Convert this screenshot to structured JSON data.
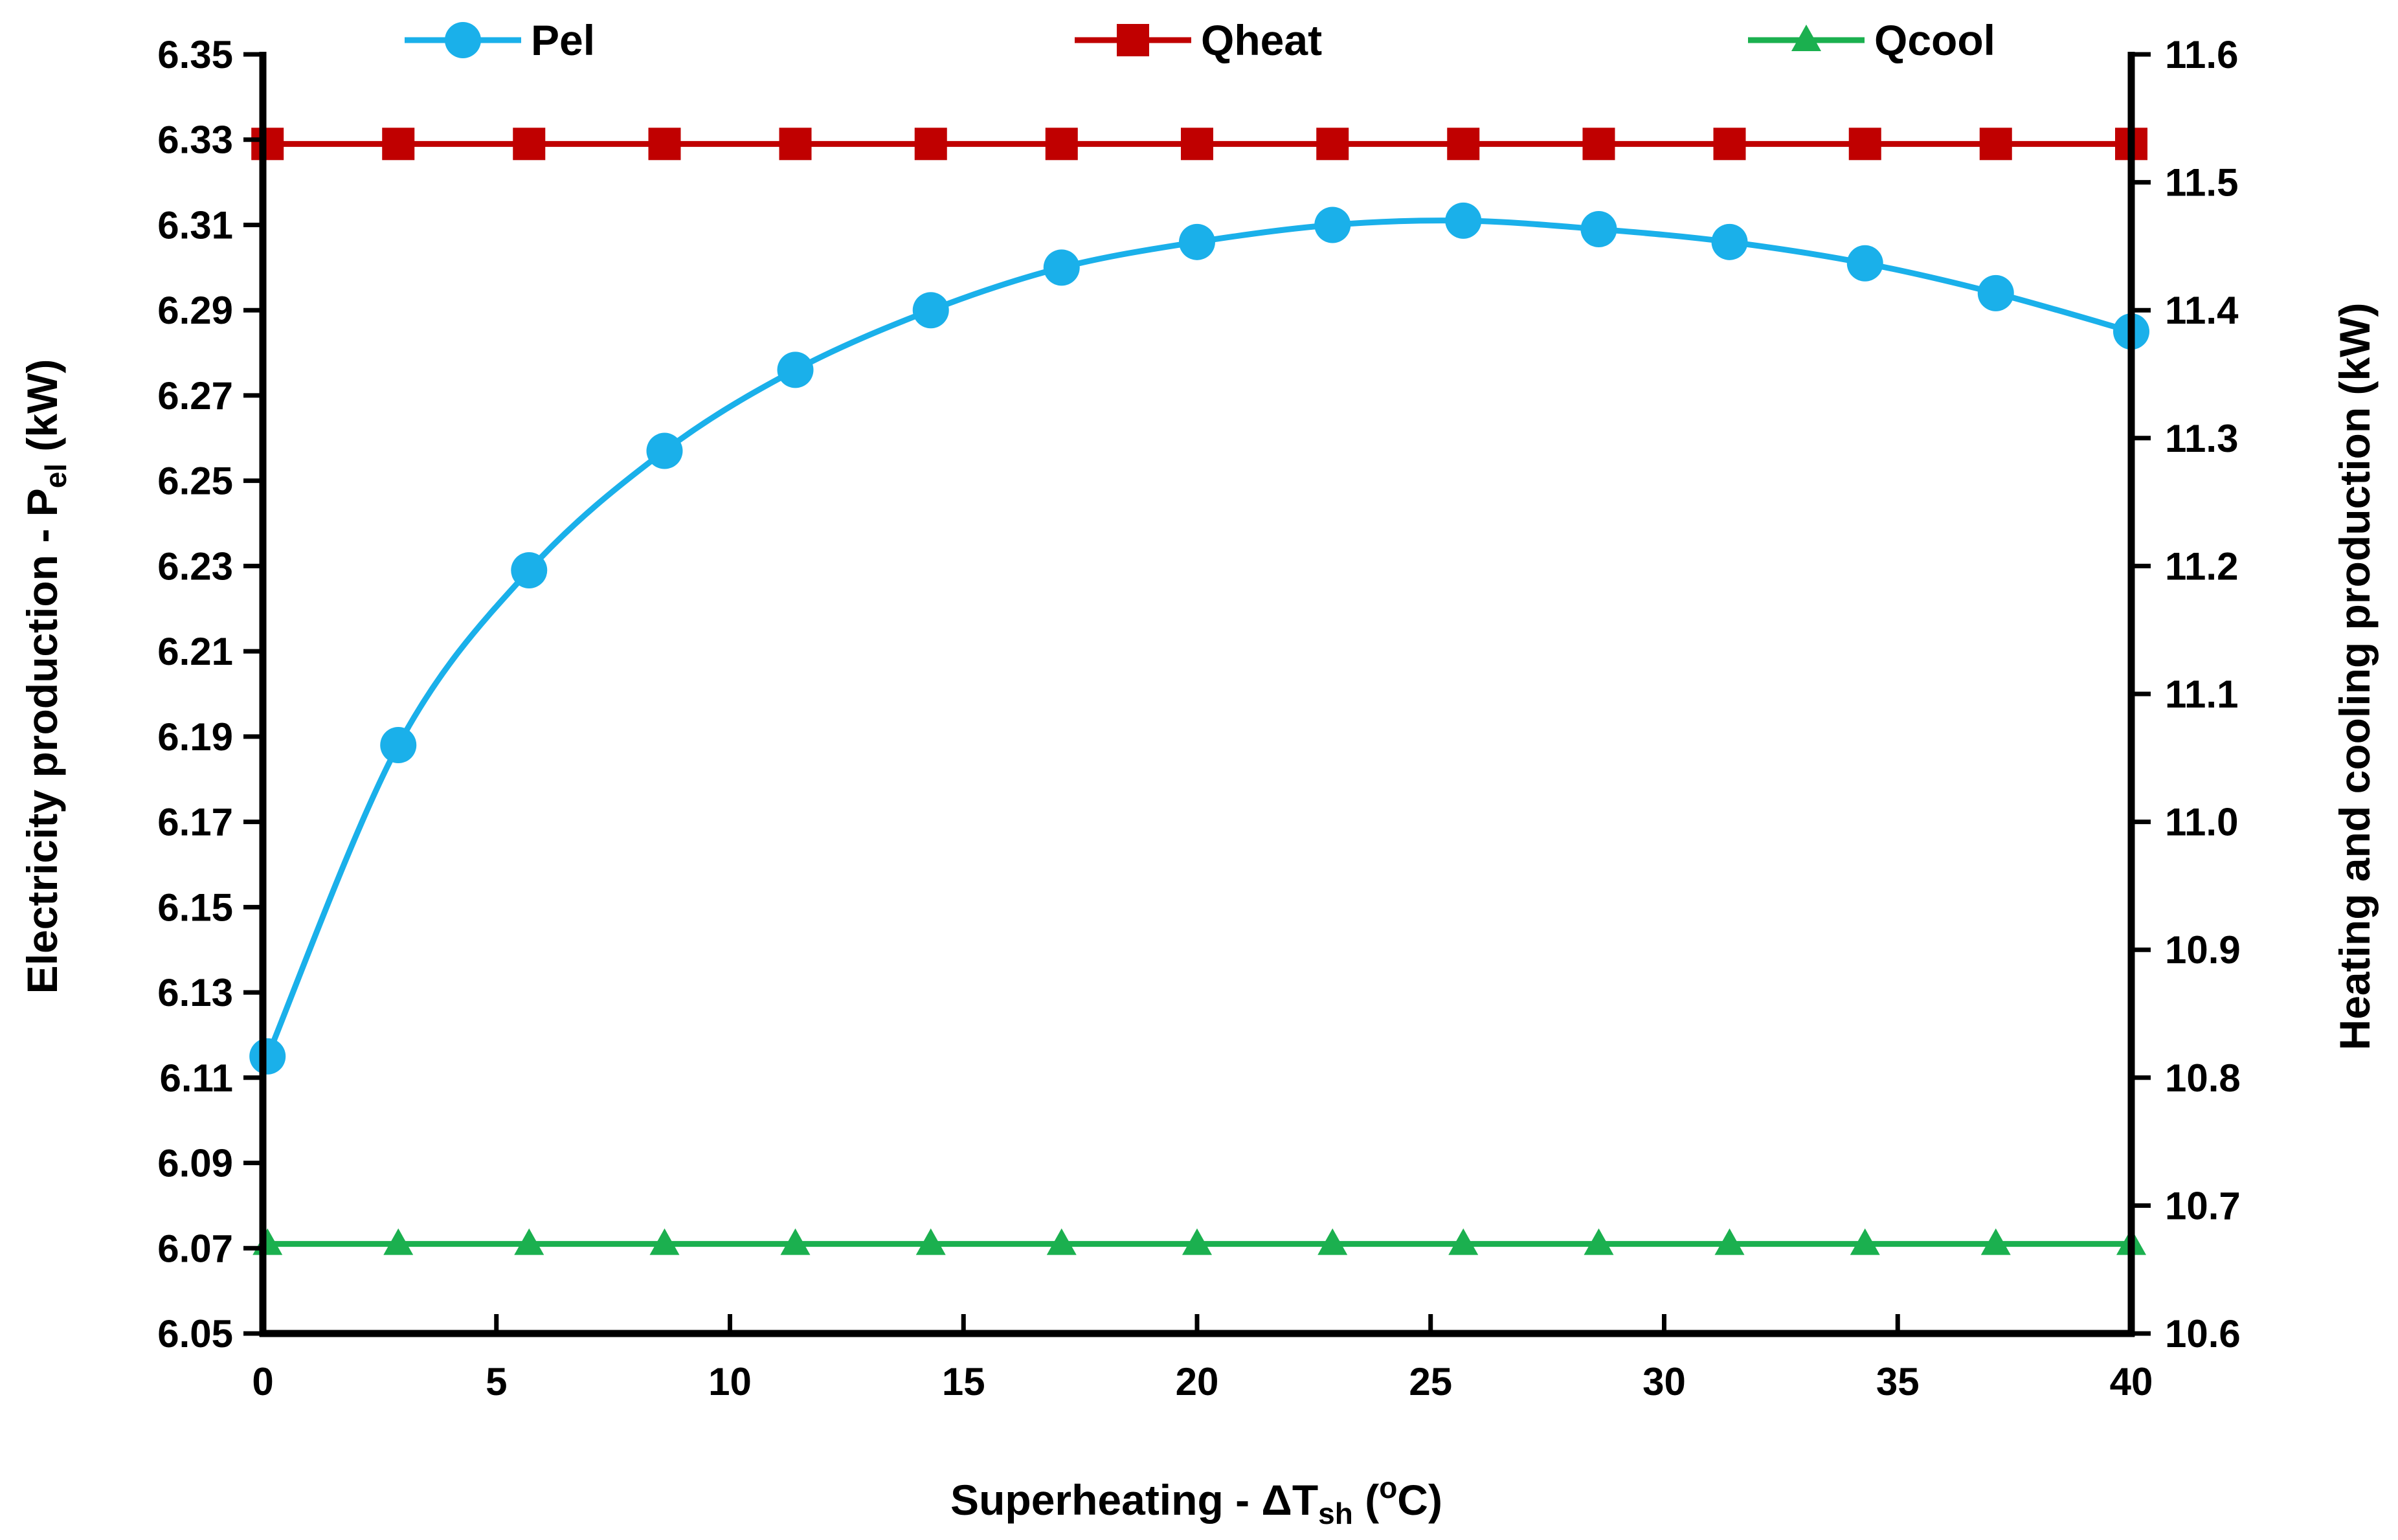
{
  "chart_data": {
    "type": "line",
    "title": "",
    "xlabel": "Superheating - ΔT_sh (°C)",
    "xlabel_parts": {
      "main": "Superheating - ΔT",
      "sub": "sh",
      "open": " (",
      "sup": "o",
      "close": "C)"
    },
    "ylabel": "Electricity production - P_el (kW)",
    "ylabel_parts": {
      "main": "Electricity production - P",
      "sub": "el",
      "tail": " (kW)"
    },
    "y2label": "Heating and cooling production (kW)",
    "xlim": [
      0,
      40
    ],
    "ylim": [
      6.05,
      6.35
    ],
    "y2lim": [
      10.6,
      11.6
    ],
    "xticks": [
      "0",
      "5",
      "10",
      "15",
      "20",
      "25",
      "30",
      "35",
      "40"
    ],
    "xtick_values": [
      0,
      5,
      10,
      15,
      20,
      25,
      30,
      35,
      40
    ],
    "yticks": [
      "6.05",
      "6.07",
      "6.09",
      "6.11",
      "6.13",
      "6.15",
      "6.17",
      "6.19",
      "6.21",
      "6.23",
      "6.25",
      "6.27",
      "6.29",
      "6.31",
      "6.33",
      "6.35"
    ],
    "ytick_values": [
      6.05,
      6.07,
      6.09,
      6.11,
      6.13,
      6.15,
      6.17,
      6.19,
      6.21,
      6.23,
      6.25,
      6.27,
      6.29,
      6.31,
      6.33,
      6.35
    ],
    "y2ticks": [
      "10.6",
      "10.7",
      "10.8",
      "10.9",
      "11.0",
      "11.1",
      "11.2",
      "11.3",
      "11.4",
      "11.5",
      "11.6"
    ],
    "y2tick_values": [
      10.6,
      10.7,
      10.8,
      10.9,
      11.0,
      11.1,
      11.2,
      11.3,
      11.4,
      11.5,
      11.6
    ],
    "x": [
      0.1,
      2.9,
      5.7,
      8.6,
      11.4,
      14.3,
      17.1,
      20.0,
      22.9,
      25.7,
      28.6,
      31.4,
      34.3,
      37.1,
      40.0
    ],
    "series": [
      {
        "name": "Pel",
        "axis": "left",
        "marker": "circle",
        "color": "#1ab0ea",
        "values": [
          6.115,
          6.188,
          6.229,
          6.257,
          6.276,
          6.29,
          6.3,
          6.306,
          6.31,
          6.311,
          6.309,
          6.306,
          6.301,
          6.294,
          6.285
        ]
      },
      {
        "name": "Qheat",
        "axis": "right",
        "marker": "square",
        "color": "#c00000",
        "values": [
          11.53,
          11.53,
          11.53,
          11.53,
          11.53,
          11.53,
          11.53,
          11.53,
          11.53,
          11.53,
          11.53,
          11.53,
          11.53,
          11.53,
          11.53
        ]
      },
      {
        "name": "Qcool",
        "axis": "right",
        "marker": "triangle",
        "color": "#1bb04f",
        "values": [
          10.67,
          10.67,
          10.67,
          10.67,
          10.67,
          10.67,
          10.67,
          10.67,
          10.67,
          10.67,
          10.67,
          10.67,
          10.67,
          10.67,
          10.67
        ]
      }
    ],
    "legend_position": "top",
    "grid": false
  }
}
